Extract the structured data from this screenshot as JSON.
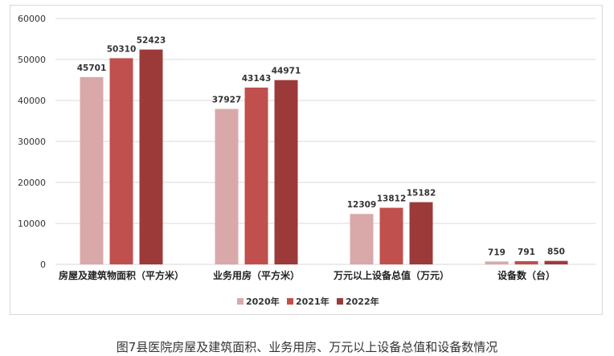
{
  "caption": "图7县医院房屋及建筑面积、业务用房、万元以上设备总值和设备数情况",
  "chart_data": {
    "type": "bar",
    "title": "",
    "xlabel": "",
    "ylabel": "",
    "ylim": [
      0,
      60000
    ],
    "yticks": [
      0,
      10000,
      20000,
      30000,
      40000,
      50000,
      60000
    ],
    "grid": true,
    "legend_position": "bottom",
    "categories": [
      "房屋及建筑物面积（平方米）",
      "业务用房（平方米）",
      "万元以上设备总值（万元）",
      "设备数（台）"
    ],
    "series": [
      {
        "name": "2020年",
        "color": "#d9a9aa",
        "values": [
          45701,
          37927,
          12309,
          719
        ]
      },
      {
        "name": "2021年",
        "color": "#c0504d",
        "values": [
          50310,
          43143,
          13812,
          791
        ]
      },
      {
        "name": "2022年",
        "color": "#9c3a3a",
        "values": [
          52423,
          44971,
          15182,
          850
        ]
      }
    ]
  }
}
